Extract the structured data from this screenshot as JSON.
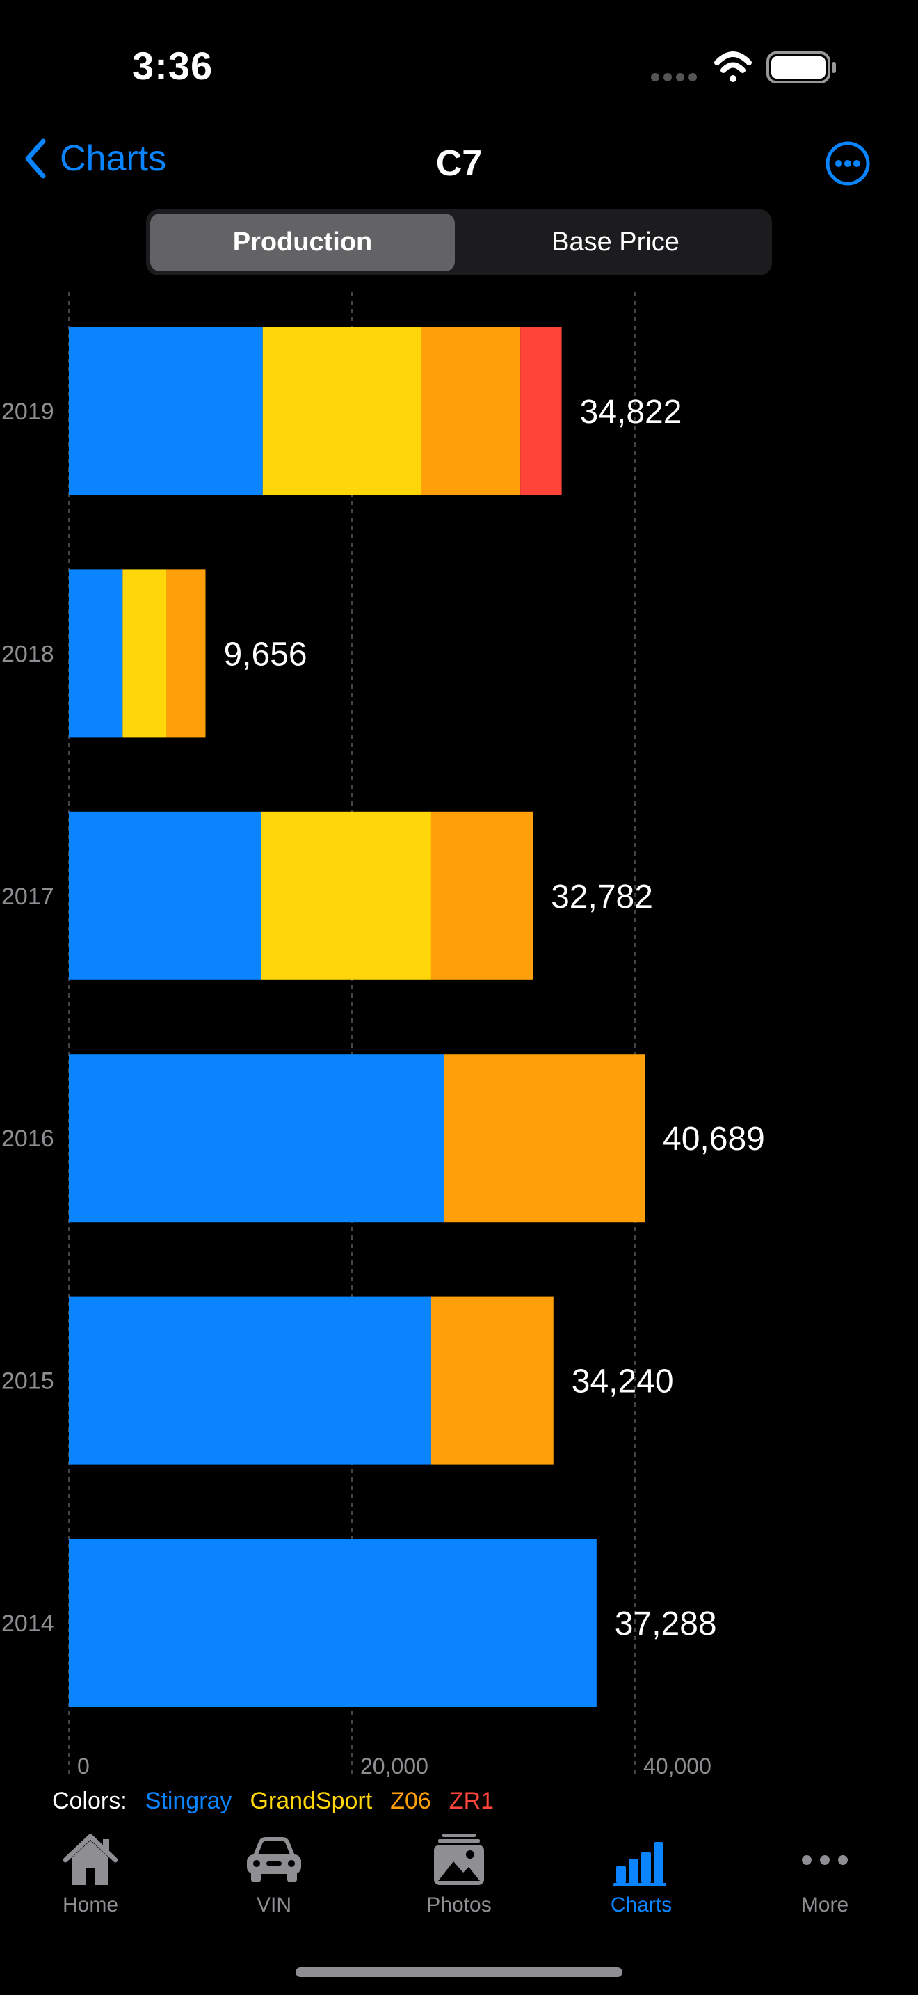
{
  "status_bar": {
    "time": "3:36"
  },
  "nav": {
    "back_label": "Charts",
    "title": "C7"
  },
  "segments": [
    {
      "label": "Production",
      "selected": true
    },
    {
      "label": "Base Price",
      "selected": false
    }
  ],
  "legend": {
    "prefix": "Colors:",
    "items": [
      {
        "label": "Stingray",
        "color": "#0A84FF"
      },
      {
        "label": "GrandSport",
        "color": "#FFD60A"
      },
      {
        "label": "Z06",
        "color": "#FF9F0A"
      },
      {
        "label": "ZR1",
        "color": "#FF453A"
      }
    ]
  },
  "chart_data": {
    "type": "bar",
    "orientation": "horizontal",
    "stacked": true,
    "categories": [
      "2019",
      "2018",
      "2017",
      "2016",
      "2015",
      "2014"
    ],
    "totals": [
      "34,822",
      "9,656",
      "32,782",
      "40,689",
      "34,240",
      "37,288"
    ],
    "series": [
      {
        "name": "Stingray",
        "color": "#0A84FF",
        "values": [
          13700,
          3800,
          13600,
          26500,
          25600,
          37288
        ]
      },
      {
        "name": "GrandSport",
        "color": "#FFD60A",
        "values": [
          11200,
          3100,
          12000,
          0,
          0,
          0
        ]
      },
      {
        "name": "Z06",
        "color": "#FF9F0A",
        "values": [
          7000,
          2756,
          7182,
          14189,
          8640,
          0
        ]
      },
      {
        "name": "ZR1",
        "color": "#FF453A",
        "values": [
          2922,
          0,
          0,
          0,
          0,
          0
        ]
      }
    ],
    "x_ticks": [
      "0",
      "20,000",
      "40,000"
    ],
    "xlim": [
      0,
      40000
    ],
    "grid": true
  },
  "tabs": [
    {
      "label": "Home",
      "icon": "house-icon",
      "active": false
    },
    {
      "label": "VIN",
      "icon": "car-icon",
      "active": false
    },
    {
      "label": "Photos",
      "icon": "photos-icon",
      "active": false
    },
    {
      "label": "Charts",
      "icon": "chart-bar-icon",
      "active": true
    },
    {
      "label": "More",
      "icon": "ellipsis-icon",
      "active": false
    }
  ]
}
